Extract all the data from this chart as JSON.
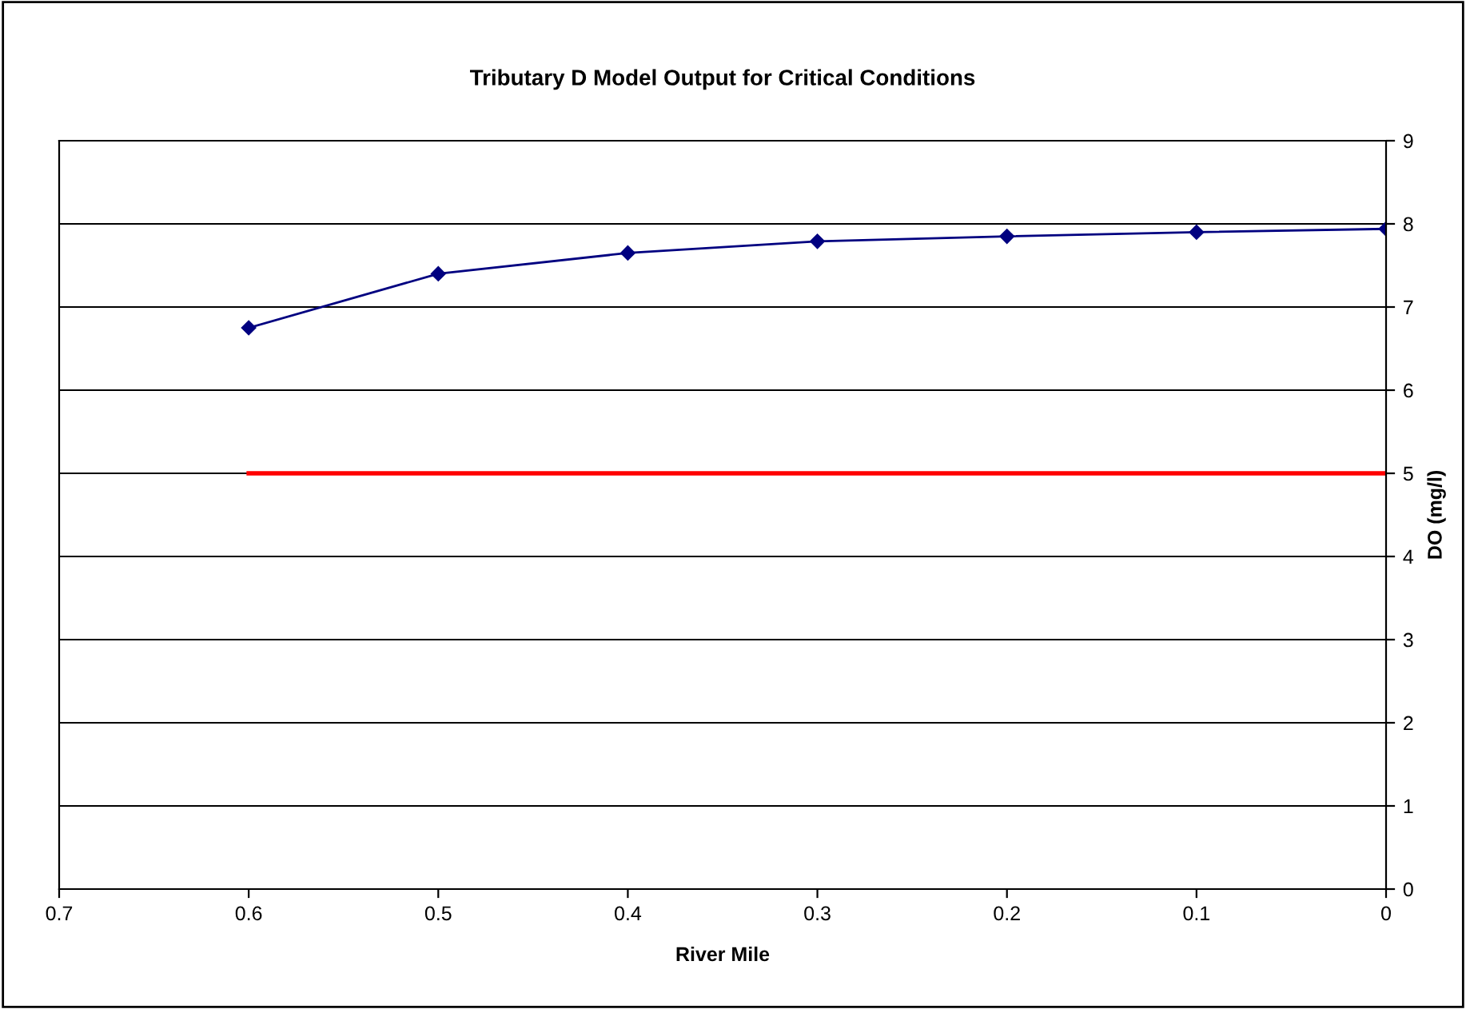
{
  "chart_data": {
    "type": "line",
    "title": "Tributary D Model Output for Critical Conditions",
    "xlabel": "River Mile",
    "ylabel": "DO (mg/l)",
    "x": [
      0.6,
      0.5,
      0.4,
      0.3,
      0.2,
      0.1,
      0
    ],
    "series": [
      {
        "color": "#000080",
        "values": [
          6.75,
          7.4,
          7.65,
          7.79,
          7.85,
          7.9,
          7.94
        ],
        "marker": "diamond"
      },
      {
        "color": "#ff0000",
        "x": [
          0.6,
          0
        ],
        "values": [
          5,
          5
        ],
        "marker": "none"
      }
    ],
    "xlim": [
      0.7,
      0
    ],
    "xticks": [
      0.7,
      0.6,
      0.5,
      0.4,
      0.3,
      0.2,
      0.1,
      0
    ],
    "ylim": [
      0,
      9
    ],
    "yticks": [
      0,
      1,
      2,
      3,
      4,
      5,
      6,
      7,
      8,
      9
    ],
    "grid": "y",
    "legend": false
  }
}
